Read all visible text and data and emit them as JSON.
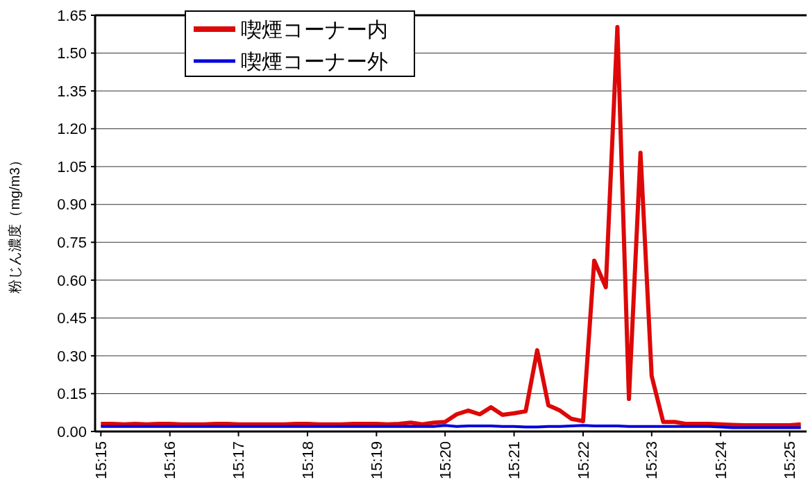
{
  "chart_data": {
    "type": "line",
    "ylabel": "粉じん濃度（mg/m3）",
    "x": [
      15.25,
      15.2528,
      15.2556,
      15.2583,
      15.2611,
      15.2639,
      15.2667,
      15.2694,
      15.2722,
      15.275,
      15.2778,
      15.2806,
      15.2833,
      15.2861,
      15.2889,
      15.2917,
      15.2944,
      15.2972,
      15.3,
      15.3028,
      15.3056,
      15.3083,
      15.3111,
      15.3139,
      15.3167,
      15.3194,
      15.3222,
      15.325,
      15.3278,
      15.3306,
      15.3333,
      15.3361,
      15.3389,
      15.3417,
      15.3444,
      15.3472,
      15.35,
      15.3528,
      15.3556,
      15.3583,
      15.3611,
      15.3639,
      15.3667,
      15.3694,
      15.3722,
      15.375,
      15.3778,
      15.3806,
      15.3833,
      15.3861,
      15.3889,
      15.3917,
      15.3944,
      15.3972,
      15.4,
      15.4028,
      15.4056,
      15.4083,
      15.4111,
      15.4139,
      15.4167,
      15.4194
    ],
    "series": [
      {
        "name": "喫煙コーナー内",
        "color": "#dd0808",
        "values": [
          0.03,
          0.03,
          0.028,
          0.03,
          0.028,
          0.03,
          0.03,
          0.028,
          0.028,
          0.028,
          0.03,
          0.03,
          0.028,
          0.028,
          0.028,
          0.028,
          0.028,
          0.03,
          0.03,
          0.028,
          0.028,
          0.028,
          0.03,
          0.03,
          0.03,
          0.028,
          0.03,
          0.035,
          0.028,
          0.035,
          0.038,
          0.068,
          0.083,
          0.068,
          0.096,
          0.066,
          0.072,
          0.08,
          0.322,
          0.104,
          0.083,
          0.05,
          0.041,
          0.677,
          0.572,
          1.603,
          0.129,
          1.105,
          0.22,
          0.038,
          0.038,
          0.03,
          0.03,
          0.03,
          0.028,
          0.026,
          0.025,
          0.025,
          0.025,
          0.025,
          0.025,
          0.028
        ]
      },
      {
        "name": "喫煙コーナー外",
        "color": "#0000dd",
        "values": [
          0.02,
          0.02,
          0.02,
          0.02,
          0.02,
          0.02,
          0.02,
          0.02,
          0.02,
          0.02,
          0.02,
          0.02,
          0.02,
          0.02,
          0.02,
          0.02,
          0.02,
          0.02,
          0.02,
          0.02,
          0.02,
          0.02,
          0.02,
          0.02,
          0.02,
          0.02,
          0.02,
          0.02,
          0.02,
          0.02,
          0.024,
          0.02,
          0.022,
          0.022,
          0.022,
          0.02,
          0.02,
          0.018,
          0.018,
          0.02,
          0.02,
          0.022,
          0.024,
          0.022,
          0.022,
          0.022,
          0.02,
          0.02,
          0.02,
          0.02,
          0.02,
          0.02,
          0.02,
          0.02,
          0.018,
          0.015,
          0.015,
          0.015,
          0.015,
          0.015,
          0.015,
          0.015
        ]
      }
    ],
    "xlim": [
      15.2486,
      15.4208
    ],
    "xticks": [
      {
        "value": 15.25,
        "label": "15:15"
      },
      {
        "value": 15.2667,
        "label": "15:16"
      },
      {
        "value": 15.2833,
        "label": "15:17"
      },
      {
        "value": 15.3,
        "label": "15:18"
      },
      {
        "value": 15.3167,
        "label": "15:19"
      },
      {
        "value": 15.3333,
        "label": "15:20"
      },
      {
        "value": 15.35,
        "label": "15:21"
      },
      {
        "value": 15.3667,
        "label": "15:22"
      },
      {
        "value": 15.3833,
        "label": "15:23"
      },
      {
        "value": 15.4,
        "label": "15:24"
      },
      {
        "value": 15.4167,
        "label": "15:25"
      }
    ],
    "ylim": [
      0,
      1.65
    ],
    "yticks": [
      {
        "value": 0,
        "label": "0.00"
      },
      {
        "value": 0.15,
        "label": "0.15"
      },
      {
        "value": 0.3,
        "label": "0.30"
      },
      {
        "value": 0.45,
        "label": "0.45"
      },
      {
        "value": 0.6,
        "label": "0.60"
      },
      {
        "value": 0.75,
        "label": "0.75"
      },
      {
        "value": 0.9,
        "label": "0.90"
      },
      {
        "value": 1.05,
        "label": "1.05"
      },
      {
        "value": 1.2,
        "label": "1.20"
      },
      {
        "value": 1.35,
        "label": "1.35"
      },
      {
        "value": 1.5,
        "label": "1.50"
      },
      {
        "value": 1.65,
        "label": "1.65"
      }
    ],
    "grid": "y",
    "legend": "top left",
    "line_style": "solid"
  }
}
